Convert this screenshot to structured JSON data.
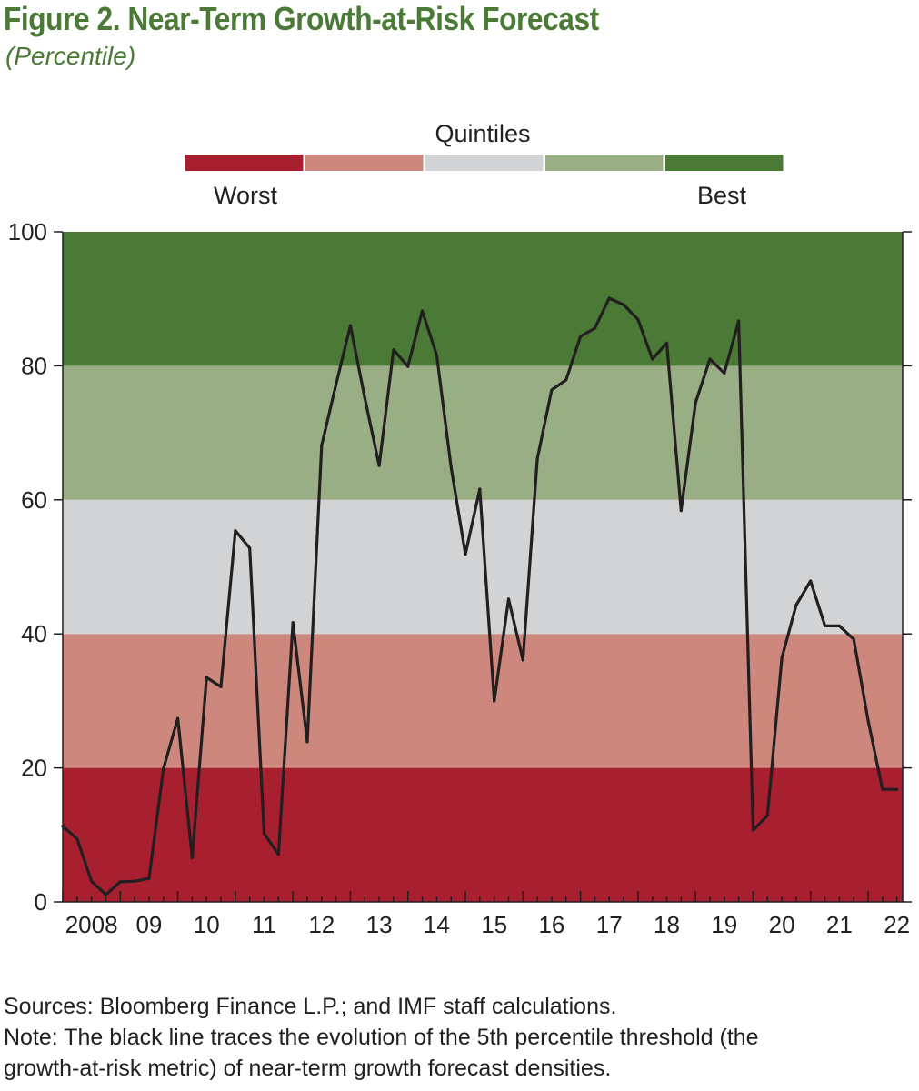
{
  "chart_data": {
    "type": "line",
    "title": "Figure 2. Near-Term Growth-at-Risk Forecast",
    "subtitle": "(Percentile)",
    "ylim": [
      0,
      100
    ],
    "yticks": [
      0,
      20,
      40,
      60,
      80,
      100
    ],
    "xlim": [
      2008,
      2022.6
    ],
    "xtick_labels": [
      "2008",
      "09",
      "10",
      "11",
      "12",
      "13",
      "14",
      "15",
      "16",
      "17",
      "18",
      "19",
      "20",
      "21",
      "22"
    ],
    "xtick_values": [
      2008,
      2009,
      2010,
      2011,
      2012,
      2013,
      2014,
      2015,
      2016,
      2017,
      2018,
      2019,
      2020,
      2021,
      2022
    ],
    "legend": {
      "title": "Quintiles",
      "low_label": "Worst",
      "high_label": "Best",
      "colors": [
        "#a81f2f",
        "#cd877c",
        "#d1d3d4",
        "#9aae86",
        "#4a7a35"
      ]
    },
    "bands": [
      {
        "from": 0,
        "to": 20,
        "color": "#a81f2f"
      },
      {
        "from": 20,
        "to": 40,
        "color": "#cd877c"
      },
      {
        "from": 40,
        "to": 60,
        "color": "#d1d3d4"
      },
      {
        "from": 60,
        "to": 80,
        "color": "#9aae86"
      },
      {
        "from": 80,
        "to": 100,
        "color": "#4a7a35"
      }
    ],
    "series": [
      {
        "name": "5th percentile threshold (growth-at-risk)",
        "color": "#231f20",
        "x": [
          2008.0,
          2008.25,
          2008.5,
          2008.75,
          2009.0,
          2009.25,
          2009.5,
          2009.75,
          2010.0,
          2010.25,
          2010.5,
          2010.75,
          2011.0,
          2011.25,
          2011.5,
          2011.75,
          2012.0,
          2012.25,
          2012.5,
          2012.75,
          2013.0,
          2013.25,
          2013.5,
          2013.75,
          2014.0,
          2014.25,
          2014.5,
          2014.75,
          2015.0,
          2015.25,
          2015.5,
          2015.75,
          2016.0,
          2016.25,
          2016.5,
          2016.75,
          2017.0,
          2017.25,
          2017.5,
          2017.75,
          2018.0,
          2018.25,
          2018.5,
          2018.75,
          2019.0,
          2019.25,
          2019.5,
          2019.75,
          2020.0,
          2020.25,
          2020.5,
          2020.75,
          2021.0,
          2021.25,
          2021.5,
          2021.75,
          2022.0,
          2022.25,
          2022.5
        ],
        "values": [
          11.3,
          9.4,
          3.1,
          1.1,
          3.0,
          3.1,
          3.5,
          19.9,
          27.4,
          6.6,
          33.5,
          32.1,
          55.4,
          52.8,
          10.2,
          7.1,
          41.7,
          23.9,
          68.1,
          77.2,
          86.0,
          75.2,
          65.1,
          82.4,
          79.9,
          88.2,
          81.6,
          64.9,
          51.9,
          61.6,
          30.0,
          45.2,
          36.1,
          66.1,
          76.4,
          77.9,
          84.4,
          85.6,
          90.1,
          89.1,
          86.9,
          81.0,
          83.4,
          58.4,
          74.5,
          81.0,
          78.9,
          86.7,
          10.7,
          12.9,
          36.4,
          44.3,
          47.9,
          41.2,
          41.2,
          39.2,
          27.1,
          16.8,
          16.8
        ]
      }
    ]
  },
  "footer": {
    "sources": "Sources: Bloomberg Finance L.P.; and IMF staff calculations.",
    "note_line1": "Note: The black line traces the evolution of the 5th percentile threshold (the",
    "note_line2": "growth-at-risk metric) of near-term growth forecast densities."
  }
}
